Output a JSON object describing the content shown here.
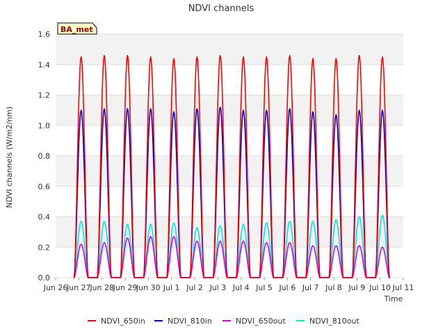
{
  "chart_data": {
    "type": "line",
    "title": "NDVI channels",
    "xlabel": "Time",
    "ylabel": "NDVI channels (W/m2/nm)",
    "badge": "BA_met",
    "ylim": [
      0,
      1.6
    ],
    "xlim": [
      0,
      15
    ],
    "yticks": [
      0.0,
      0.2,
      0.4,
      0.6,
      0.8,
      1.0,
      1.2,
      1.4,
      1.6
    ],
    "ytick_labels": [
      "0.0",
      "0.2",
      "0.4",
      "0.6",
      "0.8",
      "1.0",
      "1.2",
      "1.4",
      "1.6"
    ],
    "xticks": [
      0,
      1,
      2,
      3,
      4,
      5,
      6,
      7,
      8,
      9,
      10,
      11,
      12,
      13,
      14,
      15
    ],
    "xtick_labels": [
      "Jun 26",
      "Jun 27",
      "Jun 28",
      "Jun 29",
      "Jun 30",
      "Jul 1",
      "Jul 2",
      "Jul 3",
      "Jul 4",
      "Jul 5",
      "Jul 6",
      "Jul 7",
      "Jul 8",
      "Jul 9",
      "Jul 10",
      "Jul 11"
    ],
    "day_peak_x": [
      1.1,
      2.1,
      3.1,
      4.1,
      5.1,
      6.1,
      7.1,
      8.1,
      9.1,
      10.1,
      11.1,
      12.1,
      13.1,
      14.1
    ],
    "grid": true,
    "legend_position": "bottom",
    "series": [
      {
        "name": "NDVI_650in",
        "color": "#ff0000",
        "peaks": [
          1.45,
          1.46,
          1.46,
          1.45,
          1.44,
          1.45,
          1.46,
          1.45,
          1.45,
          1.46,
          1.44,
          1.44,
          1.46,
          1.45
        ]
      },
      {
        "name": "NDVI_810in",
        "color": "#0000cc",
        "peaks": [
          1.1,
          1.11,
          1.11,
          1.11,
          1.09,
          1.11,
          1.12,
          1.1,
          1.1,
          1.11,
          1.09,
          1.07,
          1.1,
          1.1
        ]
      },
      {
        "name": "NDVI_650out",
        "color": "#dd00dd",
        "peaks": [
          0.22,
          0.23,
          0.26,
          0.27,
          0.27,
          0.24,
          0.24,
          0.24,
          0.23,
          0.23,
          0.21,
          0.21,
          0.21,
          0.2
        ]
      },
      {
        "name": "NDVI_810out",
        "color": "#00e5ee",
        "peaks": [
          0.37,
          0.37,
          0.35,
          0.35,
          0.36,
          0.33,
          0.34,
          0.35,
          0.36,
          0.37,
          0.37,
          0.38,
          0.4,
          0.41
        ]
      }
    ]
  }
}
